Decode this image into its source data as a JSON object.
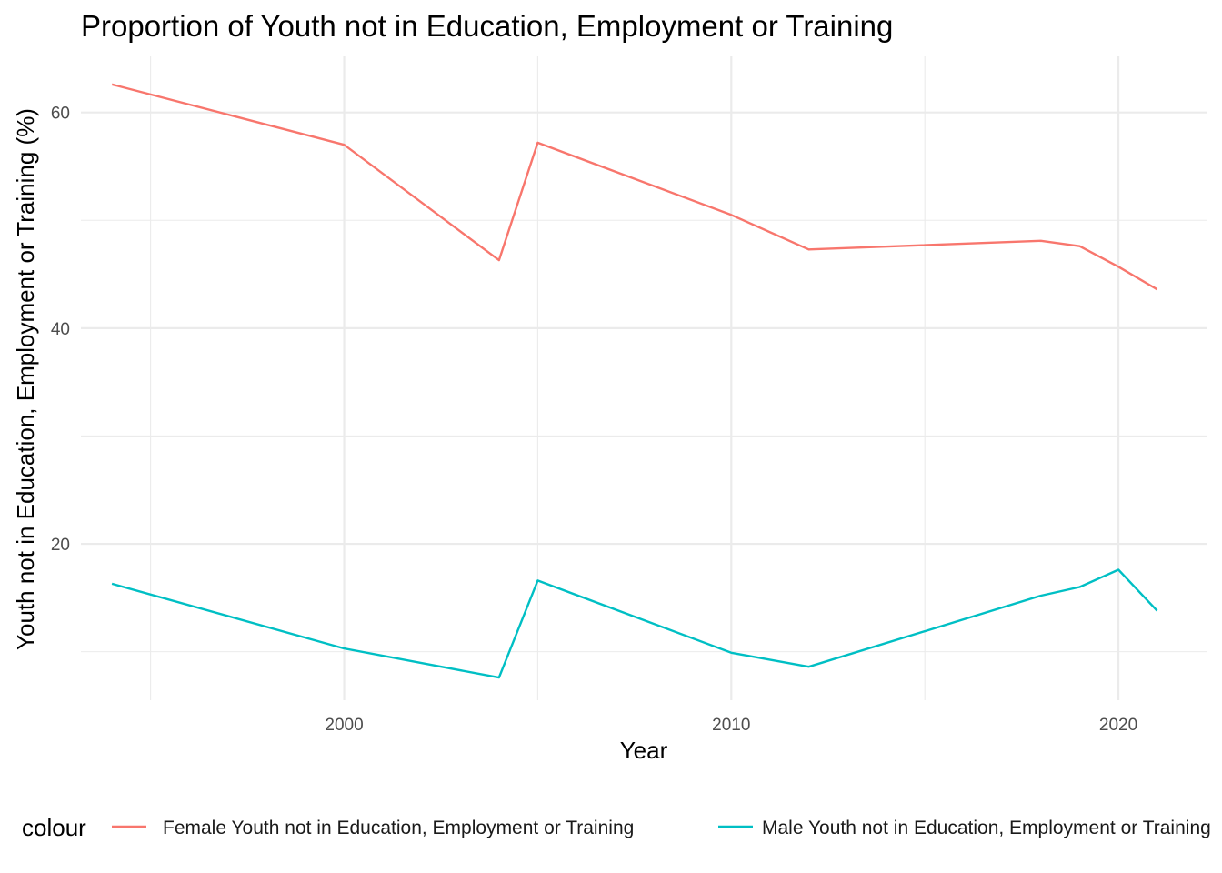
{
  "chart_data": {
    "type": "line",
    "title": "Proportion of Youth not in Education, Employment or Training",
    "xlabel": "Year",
    "ylabel": "Youth not in Education, Employment or Training (%)",
    "xlim": [
      1993.2,
      2022.3
    ],
    "ylim": [
      5.5,
      65.2
    ],
    "x_ticks": [
      2000,
      2010,
      2020
    ],
    "x_minor_ticks": [
      1995,
      2005,
      2015
    ],
    "y_ticks": [
      20,
      40,
      60
    ],
    "y_minor_ticks": [
      10,
      30,
      50
    ],
    "grid": true,
    "legend_title": "colour",
    "legend_position": "bottom",
    "series": [
      {
        "name": "Female Youth not in Education, Employment or Training",
        "color": "#F8766D",
        "x": [
          1994,
          2000,
          2004,
          2005,
          2010,
          2012,
          2018,
          2019,
          2020,
          2021
        ],
        "y": [
          62.6,
          57.0,
          46.3,
          57.2,
          50.5,
          47.3,
          48.1,
          47.6,
          45.7,
          43.6
        ]
      },
      {
        "name": "Male Youth not in Education, Employment or Training",
        "color": "#00BFC4",
        "x": [
          1994,
          2000,
          2004,
          2005,
          2010,
          2012,
          2018,
          2019,
          2020,
          2021
        ],
        "y": [
          16.3,
          10.3,
          7.6,
          16.6,
          9.9,
          8.6,
          15.2,
          16.0,
          17.6,
          13.8
        ]
      }
    ]
  }
}
